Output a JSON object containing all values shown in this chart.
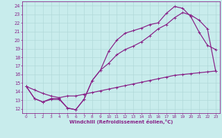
{
  "xlabel": "Windchill (Refroidissement éolien,°C)",
  "xlim": [
    -0.5,
    23.5
  ],
  "ylim": [
    11.5,
    24.5
  ],
  "xticks": [
    0,
    1,
    2,
    3,
    4,
    5,
    6,
    7,
    8,
    9,
    10,
    11,
    12,
    13,
    14,
    15,
    16,
    17,
    18,
    19,
    20,
    21,
    22,
    23
  ],
  "yticks": [
    12,
    13,
    14,
    15,
    16,
    17,
    18,
    19,
    20,
    21,
    22,
    23,
    24
  ],
  "bg_color": "#c8ecec",
  "grid_color": "#b0d8d8",
  "line_color": "#882288",
  "line1_x": [
    0,
    1,
    2,
    3,
    4,
    5,
    6,
    7,
    8,
    9,
    10,
    11,
    12,
    13,
    14,
    15,
    16,
    17,
    18,
    19,
    20,
    21,
    22,
    23
  ],
  "line1_y": [
    14.6,
    13.2,
    12.8,
    13.2,
    13.2,
    12.1,
    11.9,
    13.1,
    15.3,
    16.5,
    18.7,
    20.0,
    20.8,
    21.1,
    21.4,
    21.8,
    22.0,
    23.1,
    23.9,
    23.7,
    22.7,
    20.9,
    19.4,
    18.9
  ],
  "line2_x": [
    0,
    1,
    2,
    3,
    4,
    5,
    6,
    7,
    8,
    9,
    10,
    11,
    12,
    13,
    14,
    15,
    16,
    17,
    18,
    19,
    20,
    21,
    22,
    23
  ],
  "line2_y": [
    14.6,
    13.2,
    12.8,
    13.1,
    13.1,
    12.1,
    11.9,
    13.1,
    15.3,
    16.5,
    17.3,
    18.3,
    18.9,
    19.3,
    19.8,
    20.5,
    21.3,
    21.8,
    22.6,
    23.2,
    22.9,
    22.3,
    21.3,
    16.4
  ],
  "line3_x": [
    0,
    1,
    2,
    3,
    4,
    5,
    6,
    7,
    8,
    9,
    10,
    11,
    12,
    13,
    14,
    15,
    16,
    17,
    18,
    19,
    20,
    21,
    22,
    23
  ],
  "line3_y": [
    14.6,
    14.2,
    13.8,
    13.5,
    13.3,
    13.5,
    13.5,
    13.7,
    13.9,
    14.1,
    14.3,
    14.5,
    14.7,
    14.9,
    15.1,
    15.3,
    15.5,
    15.7,
    15.9,
    16.0,
    16.1,
    16.2,
    16.3,
    16.4
  ]
}
